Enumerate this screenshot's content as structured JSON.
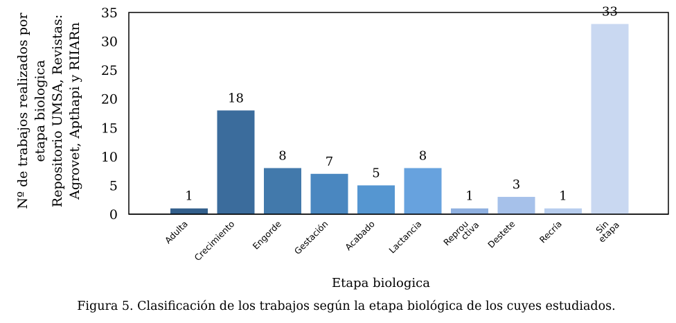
{
  "chart_data": {
    "type": "bar",
    "title": "",
    "xlabel": "Etapa biologica",
    "ylabel_lines": [
      "Nº de  trabajos realizados por",
      "etapa biologica",
      "Repositorio UMSA, Revistas:",
      "Agrovet, Apthapi y RIIARn"
    ],
    "categories": [
      [
        "Adulta"
      ],
      [
        "Crecimiento"
      ],
      [
        "Engorde"
      ],
      [
        "Gestación"
      ],
      [
        "Acabado"
      ],
      [
        "Lactancia"
      ],
      [
        "Reprou",
        "ctiva"
      ],
      [
        "Destete"
      ],
      [
        "Recría"
      ],
      [
        "Sin",
        "etapa"
      ]
    ],
    "values": [
      1,
      18,
      8,
      7,
      5,
      8,
      1,
      3,
      1,
      33
    ],
    "colors": [
      "#335f8c",
      "#3b6c9c",
      "#4279ab",
      "#4a87c0",
      "#5596d1",
      "#67a2de",
      "#8fb0e0",
      "#a6c1ea",
      "#b7cdee",
      "#c9d8f1"
    ],
    "ylim": [
      0,
      35
    ],
    "yticks": [
      0,
      5,
      10,
      15,
      20,
      25,
      30,
      35
    ],
    "grid": false,
    "legend": "none"
  },
  "caption": "Figura 5. Clasificación de los trabajos según la etapa biológica de los cuyes estudiados."
}
